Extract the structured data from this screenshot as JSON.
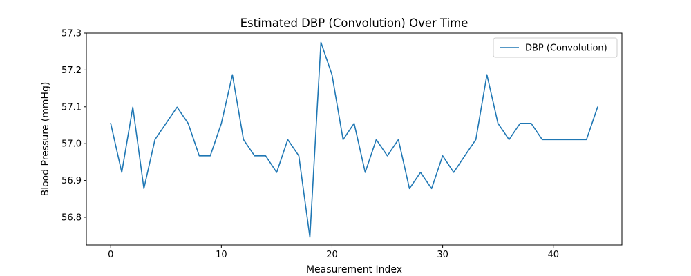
{
  "chart_data": {
    "type": "line",
    "title": "Estimated DBP (Convolution) Over Time",
    "xlabel": "Measurement Index",
    "ylabel": "Blood Pressure (mmHg)",
    "xlim": [
      -2.2,
      46.2
    ],
    "ylim": [
      56.725,
      57.3
    ],
    "xticks": [
      0,
      10,
      20,
      30,
      40
    ],
    "xtick_labels": [
      "0",
      "10",
      "20",
      "30",
      "40"
    ],
    "yticks": [
      56.8,
      56.9,
      57.0,
      57.1,
      57.2,
      57.3
    ],
    "ytick_labels": [
      "56.8",
      "56.9",
      "57.0",
      "57.1",
      "57.2",
      "57.3"
    ],
    "grid": false,
    "legend_position": "top-right",
    "series": [
      {
        "name": "DBP (Convolution)",
        "color": "#1f77b4",
        "x": [
          0,
          1,
          2,
          3,
          4,
          5,
          6,
          7,
          8,
          9,
          10,
          11,
          12,
          13,
          14,
          15,
          16,
          17,
          18,
          19,
          20,
          21,
          22,
          23,
          24,
          25,
          26,
          27,
          28,
          29,
          30,
          31,
          32,
          33,
          34,
          35,
          36,
          37,
          38,
          39,
          40,
          41,
          42,
          43,
          44
        ],
        "y": [
          57.055,
          56.922,
          57.099,
          56.878,
          57.011,
          57.055,
          57.099,
          57.055,
          56.967,
          56.967,
          57.055,
          57.187,
          57.011,
          56.967,
          56.967,
          56.922,
          57.011,
          56.967,
          56.746,
          57.275,
          57.187,
          57.011,
          57.055,
          56.922,
          57.011,
          56.967,
          57.011,
          56.878,
          56.922,
          56.878,
          56.967,
          56.922,
          56.967,
          57.011,
          57.187,
          57.055,
          57.011,
          57.055,
          57.055,
          57.011,
          57.011,
          57.011,
          57.011,
          57.011,
          57.099
        ]
      }
    ]
  }
}
